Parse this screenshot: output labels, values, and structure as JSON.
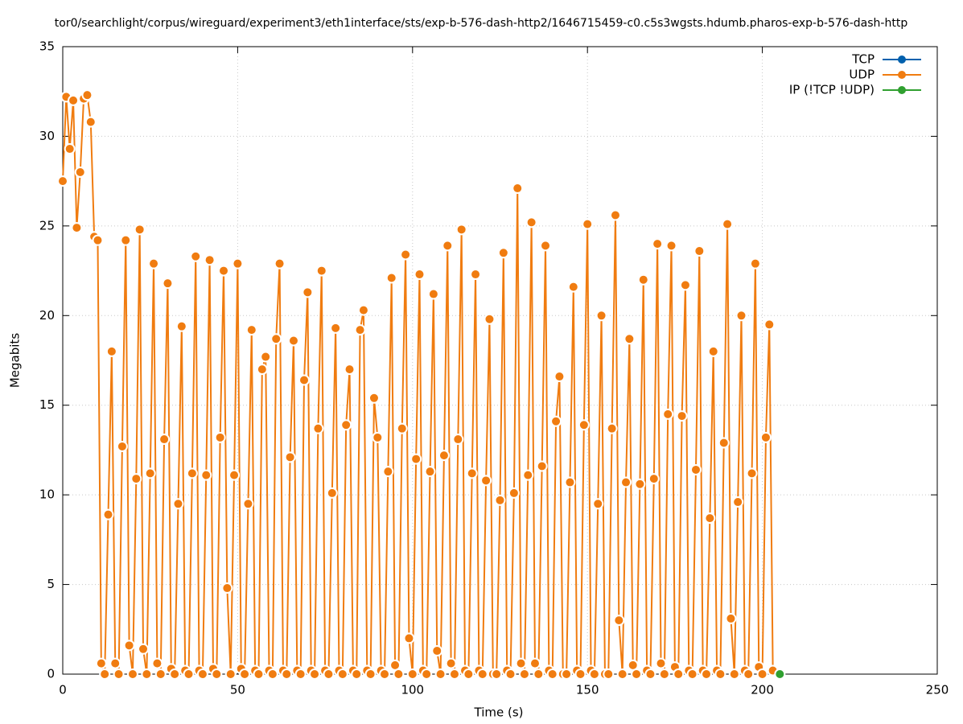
{
  "chart_data": {
    "type": "line",
    "title": "tor0/searchlight/corpus/wireguard/experiment3/eth1interface/sts/exp-b-576-dash-http2/1646715459-c0.c5s3wgsts.hdumb.pharos-exp-b-576-dash-http",
    "xlabel": "Time (s)",
    "ylabel": "Megabits",
    "xlim": [
      0,
      250
    ],
    "ylim": [
      0,
      35
    ],
    "xticks": [
      0,
      50,
      100,
      150,
      200,
      250
    ],
    "yticks": [
      0,
      5,
      10,
      15,
      20,
      25,
      30,
      35
    ],
    "grid": true,
    "legend": "top-right",
    "series": [
      {
        "name": "TCP",
        "color": "#0060ad",
        "x": [],
        "values": []
      },
      {
        "name": "UDP",
        "color": "#f07c10",
        "x": [
          0,
          1,
          2,
          3,
          4,
          5,
          6,
          7,
          8,
          9,
          10,
          11,
          12,
          13,
          14,
          15,
          16,
          17,
          18,
          19,
          20,
          21,
          22,
          23,
          24,
          25,
          26,
          27,
          28,
          29,
          30,
          31,
          32,
          33,
          34,
          35,
          36,
          37,
          38,
          39,
          40,
          41,
          42,
          43,
          44,
          45,
          46,
          47,
          48,
          49,
          50,
          51,
          52,
          53,
          54,
          55,
          56,
          57,
          58,
          59,
          60,
          61,
          62,
          63,
          64,
          65,
          66,
          67,
          68,
          69,
          70,
          71,
          72,
          73,
          74,
          75,
          76,
          77,
          78,
          79,
          80,
          81,
          82,
          83,
          84,
          85,
          86,
          87,
          88,
          89,
          90,
          91,
          92,
          93,
          94,
          95,
          96,
          97,
          98,
          99,
          100,
          101,
          102,
          103,
          104,
          105,
          106,
          107,
          108,
          109,
          110,
          111,
          112,
          113,
          114,
          115,
          116,
          117,
          118,
          119,
          120,
          121,
          122,
          123,
          124,
          125,
          126,
          127,
          128,
          129,
          130,
          131,
          132,
          133,
          134,
          135,
          136,
          137,
          138,
          139,
          140,
          141,
          142,
          143,
          144,
          145,
          146,
          147,
          148,
          149,
          150,
          151,
          152,
          153,
          154,
          155,
          156,
          157,
          158,
          159,
          160,
          161,
          162,
          163,
          164,
          165,
          166,
          167,
          168,
          169,
          170,
          171,
          172,
          173,
          174,
          175,
          176,
          177,
          178,
          179,
          180,
          181,
          182,
          183,
          184,
          185,
          186,
          187,
          188,
          189,
          190,
          191,
          192,
          193,
          194,
          195,
          196,
          197,
          198,
          199,
          200,
          201,
          202,
          203
        ],
        "values": [
          27.5,
          32.2,
          29.3,
          32.0,
          24.9,
          28.0,
          32.1,
          32.3,
          30.8,
          24.4,
          24.2,
          0.6,
          0,
          8.9,
          18.0,
          0.6,
          0,
          12.7,
          24.2,
          1.6,
          0,
          10.9,
          24.8,
          1.4,
          0,
          11.2,
          22.9,
          0.6,
          0,
          13.1,
          21.8,
          0.3,
          0,
          9.5,
          19.4,
          0.2,
          0,
          11.2,
          23.3,
          0.2,
          0,
          11.1,
          23.1,
          0.3,
          0,
          13.2,
          22.5,
          4.8,
          0,
          11.1,
          22.9,
          0.3,
          0,
          9.5,
          19.2,
          0.2,
          0,
          17.0,
          17.7,
          0.2,
          0,
          18.7,
          22.9,
          0.2,
          0,
          12.1,
          18.6,
          0.2,
          0,
          16.4,
          21.3,
          0.2,
          0,
          13.7,
          22.5,
          0.2,
          0,
          10.1,
          19.3,
          0.2,
          0,
          13.9,
          17.0,
          0.2,
          0,
          19.2,
          20.3,
          0.2,
          0,
          15.4,
          13.2,
          0.2,
          0,
          11.3,
          22.1,
          0.5,
          0,
          13.7,
          23.4,
          2.0,
          0,
          12.0,
          22.3,
          0.2,
          0,
          11.3,
          21.2,
          1.3,
          0,
          12.2,
          23.9,
          0.6,
          0,
          13.1,
          24.8,
          0.2,
          0,
          11.2,
          22.3,
          0.2,
          0,
          10.8,
          19.8,
          0,
          0,
          9.7,
          23.5,
          0.2,
          0,
          10.1,
          27.1,
          0.6,
          0,
          11.1,
          25.2,
          0.6,
          0,
          11.6,
          23.9,
          0.2,
          0,
          14.1,
          16.6,
          0,
          0,
          10.7,
          21.6,
          0.2,
          0,
          13.9,
          25.1,
          0.2,
          0,
          9.5,
          20.0,
          0,
          0,
          13.7,
          25.6,
          3.0,
          0,
          10.7,
          18.7,
          0.5,
          0,
          10.6,
          22.0,
          0.2,
          0,
          10.9,
          24.0,
          0.6,
          0,
          14.5,
          23.9,
          0.4,
          0,
          14.4,
          21.7,
          0.2,
          0,
          11.4,
          23.6,
          0.2,
          0,
          8.7,
          18.0,
          0.2,
          0,
          12.9,
          25.1,
          3.1,
          0,
          9.6,
          20.0,
          0.2,
          0,
          11.2,
          22.9,
          0.4,
          0,
          13.2,
          19.5,
          0.2
        ]
      },
      {
        "name": "IP (!TCP  !UDP)",
        "color": "#30a030",
        "x": [
          205
        ],
        "values": [
          0
        ]
      }
    ]
  }
}
